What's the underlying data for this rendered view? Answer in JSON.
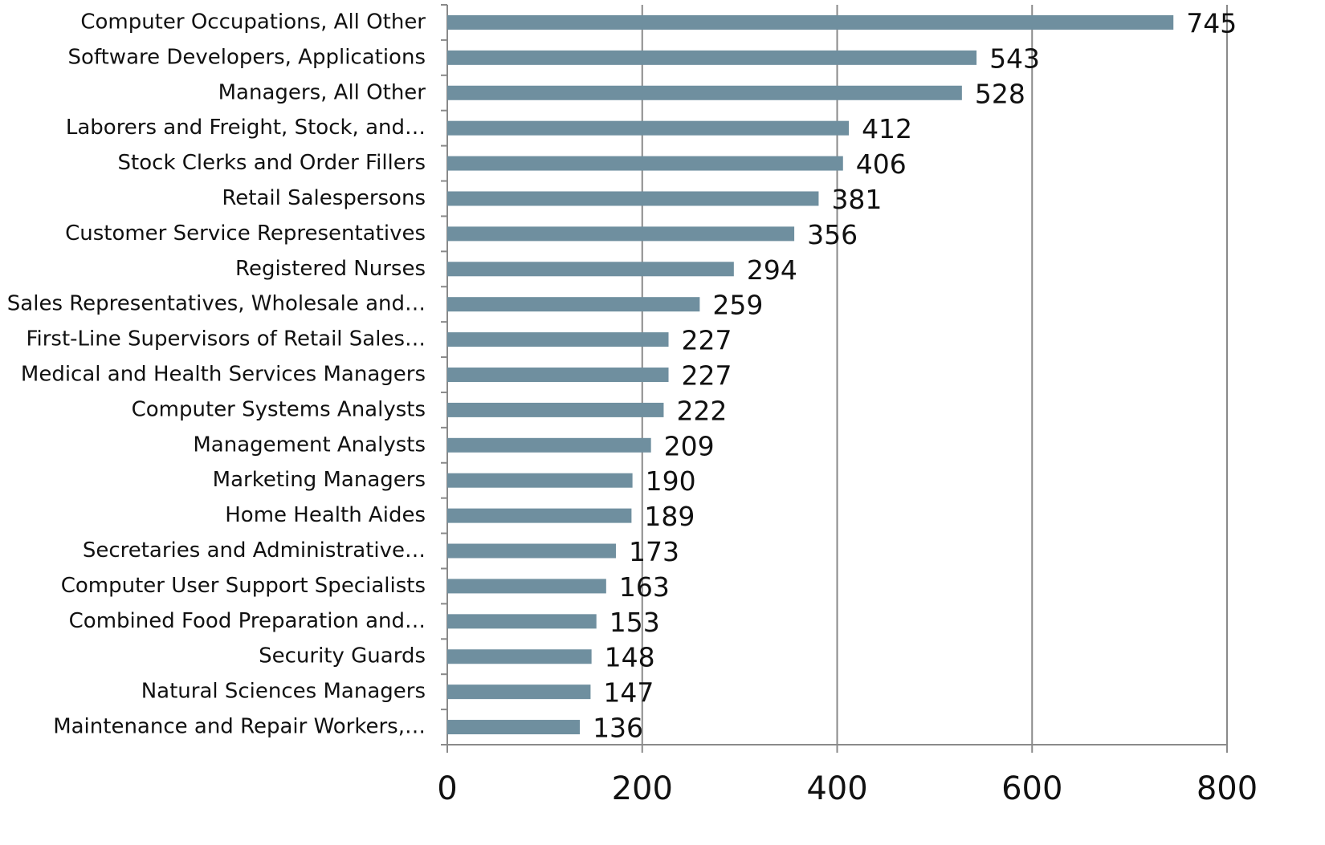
{
  "chart_data": {
    "type": "barh",
    "categories": [
      "Computer Occupations, All Other",
      "Software Developers, Applications",
      "Managers, All Other",
      "Laborers and Freight, Stock, and…",
      "Stock Clerks and Order Fillers",
      "Retail Salespersons",
      "Customer Service Representatives",
      "Registered Nurses",
      "Sales Representatives, Wholesale and…",
      "First-Line Supervisors of Retail Sales…",
      "Medical and Health Services Managers",
      "Computer Systems Analysts",
      "Management Analysts",
      "Marketing Managers",
      "Home Health Aides",
      "Secretaries and Administrative…",
      "Computer User Support Specialists",
      "Combined Food Preparation and…",
      "Security Guards",
      "Natural Sciences Managers",
      "Maintenance and Repair Workers,…"
    ],
    "values": [
      745,
      543,
      528,
      412,
      406,
      381,
      356,
      294,
      259,
      227,
      227,
      222,
      209,
      190,
      189,
      173,
      163,
      153,
      148,
      147,
      136
    ],
    "color": "#6f8f9f",
    "xlim": [
      0,
      800
    ],
    "xticks": [
      0,
      200,
      400,
      600,
      800
    ],
    "grid": true
  }
}
